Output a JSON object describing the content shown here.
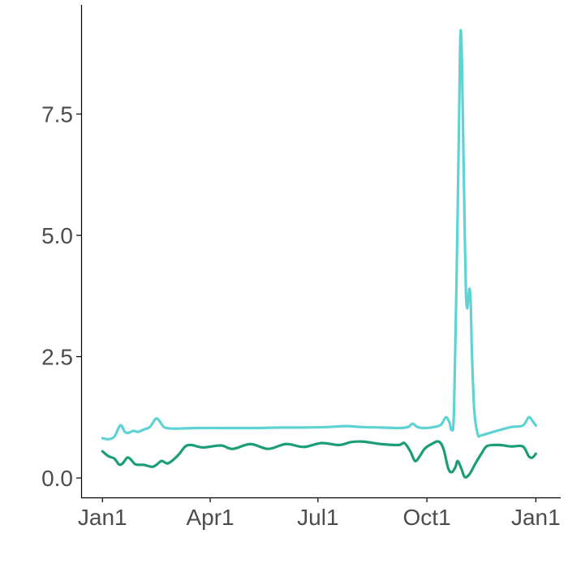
{
  "chart_data": {
    "type": "line",
    "title": "",
    "xlabel": "",
    "ylabel": "",
    "grid": false,
    "x_ticks": [
      {
        "label": "Jan1",
        "day": 0
      },
      {
        "label": "Apr1",
        "day": 91
      },
      {
        "label": "Jul1",
        "day": 182
      },
      {
        "label": "Oct1",
        "day": 274
      },
      {
        "label": "Jan1",
        "day": 366
      }
    ],
    "y_ticks": [
      {
        "label": "0.0",
        "value": 0
      },
      {
        "label": "2.5",
        "value": 2.5
      },
      {
        "label": "5.0",
        "value": 5
      },
      {
        "label": "7.5",
        "value": 7.5
      }
    ],
    "xlim": [
      -18,
      387
    ],
    "ylim": [
      -0.4,
      9.75
    ],
    "series": [
      {
        "color": "#5fd3d3",
        "points": [
          [
            0,
            0.82
          ],
          [
            5,
            0.8
          ],
          [
            10,
            0.85
          ],
          [
            14,
            1.05
          ],
          [
            16,
            1.08
          ],
          [
            19,
            0.95
          ],
          [
            22,
            0.93
          ],
          [
            26,
            0.97
          ],
          [
            30,
            0.95
          ],
          [
            35,
            1.0
          ],
          [
            40,
            1.05
          ],
          [
            45,
            1.22
          ],
          [
            48,
            1.18
          ],
          [
            52,
            1.05
          ],
          [
            58,
            1.02
          ],
          [
            65,
            1.02
          ],
          [
            80,
            1.03
          ],
          [
            100,
            1.03
          ],
          [
            130,
            1.03
          ],
          [
            150,
            1.04
          ],
          [
            170,
            1.04
          ],
          [
            190,
            1.05
          ],
          [
            205,
            1.07
          ],
          [
            220,
            1.05
          ],
          [
            235,
            1.04
          ],
          [
            250,
            1.03
          ],
          [
            258,
            1.05
          ],
          [
            262,
            1.12
          ],
          [
            266,
            1.05
          ],
          [
            272,
            1.03
          ],
          [
            280,
            1.05
          ],
          [
            286,
            1.1
          ],
          [
            290,
            1.25
          ],
          [
            293,
            1.15
          ],
          [
            295,
            1.0
          ],
          [
            297,
            1.5
          ],
          [
            300,
            5.5
          ],
          [
            302,
            8.8
          ],
          [
            303,
            9.1
          ],
          [
            304,
            8.0
          ],
          [
            306,
            5.0
          ],
          [
            307,
            3.8
          ],
          [
            308,
            3.5
          ],
          [
            309,
            3.7
          ],
          [
            310,
            3.9
          ],
          [
            311,
            3.6
          ],
          [
            312,
            2.6
          ],
          [
            314,
            1.4
          ],
          [
            317,
            0.9
          ],
          [
            320,
            0.88
          ],
          [
            330,
            0.95
          ],
          [
            345,
            1.05
          ],
          [
            355,
            1.08
          ],
          [
            360,
            1.25
          ],
          [
            363,
            1.18
          ],
          [
            366,
            1.08
          ]
        ]
      },
      {
        "color": "#1b9e77",
        "points": [
          [
            0,
            0.55
          ],
          [
            5,
            0.45
          ],
          [
            10,
            0.4
          ],
          [
            14,
            0.28
          ],
          [
            17,
            0.3
          ],
          [
            21,
            0.42
          ],
          [
            24,
            0.38
          ],
          [
            28,
            0.28
          ],
          [
            35,
            0.27
          ],
          [
            42,
            0.23
          ],
          [
            46,
            0.28
          ],
          [
            50,
            0.35
          ],
          [
            55,
            0.3
          ],
          [
            60,
            0.38
          ],
          [
            65,
            0.5
          ],
          [
            70,
            0.65
          ],
          [
            75,
            0.68
          ],
          [
            85,
            0.63
          ],
          [
            100,
            0.67
          ],
          [
            110,
            0.6
          ],
          [
            125,
            0.7
          ],
          [
            140,
            0.6
          ],
          [
            155,
            0.7
          ],
          [
            170,
            0.64
          ],
          [
            185,
            0.72
          ],
          [
            200,
            0.68
          ],
          [
            210,
            0.74
          ],
          [
            220,
            0.75
          ],
          [
            235,
            0.7
          ],
          [
            250,
            0.68
          ],
          [
            255,
            0.72
          ],
          [
            260,
            0.55
          ],
          [
            264,
            0.35
          ],
          [
            268,
            0.45
          ],
          [
            272,
            0.6
          ],
          [
            278,
            0.7
          ],
          [
            284,
            0.75
          ],
          [
            288,
            0.6
          ],
          [
            292,
            0.2
          ],
          [
            295,
            0.12
          ],
          [
            298,
            0.22
          ],
          [
            300,
            0.35
          ],
          [
            303,
            0.2
          ],
          [
            306,
            0.02
          ],
          [
            310,
            0.08
          ],
          [
            315,
            0.3
          ],
          [
            320,
            0.5
          ],
          [
            325,
            0.66
          ],
          [
            335,
            0.68
          ],
          [
            345,
            0.65
          ],
          [
            355,
            0.65
          ],
          [
            360,
            0.45
          ],
          [
            363,
            0.42
          ],
          [
            366,
            0.5
          ]
        ]
      }
    ]
  }
}
